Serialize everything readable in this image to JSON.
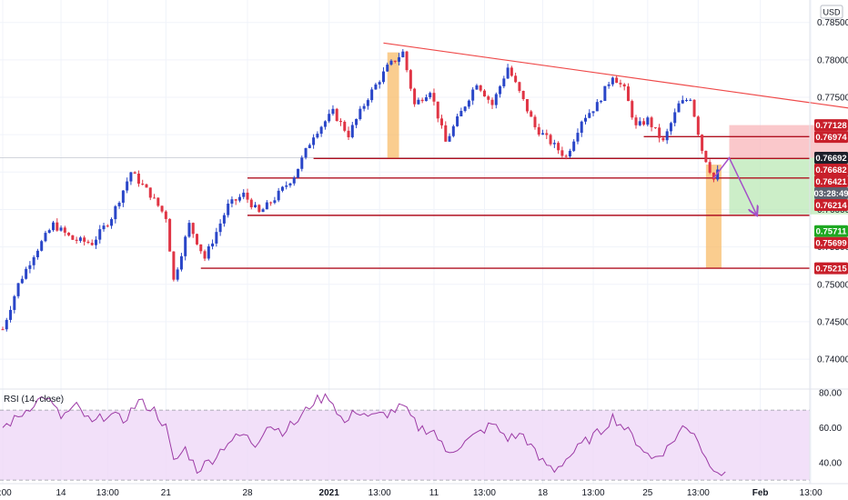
{
  "currency": "USD",
  "colors": {
    "up": "#2a46c8",
    "down": "#e03545",
    "level": "#b01020",
    "trendline": "#ef4a4a",
    "highlight": "#f7b253",
    "target_zone": "#b7e7b1",
    "stop_zone": "#f8b6b9",
    "arrow": "#a44fc9",
    "rsi_line": "#9c3aa5",
    "rsi_band": "#efd8f7",
    "tag_green": "#1ea822",
    "tag_red": "#c81f2a",
    "tag_dark": "#1b1e29",
    "tag_grey": "#5d6270"
  },
  "chart_data": {
    "type": "candlestick",
    "symbol_price_axis": {
      "ticks": [
        0.74,
        0.745,
        0.75,
        0.755,
        0.76,
        0.765,
        0.77,
        0.775,
        0.78,
        0.785
      ],
      "tick_labels": [
        "0.74000",
        "0.74500",
        "0.75000",
        "0.75500",
        "0.76000",
        "0.76500",
        "0.77000",
        "0.77500",
        "0.78000",
        "0.78500"
      ],
      "range": [
        0.736,
        0.788
      ]
    },
    "time_axis": {
      "labels": [
        "0:00",
        "14",
        "13:00",
        "21",
        "28",
        "2021",
        "13:00",
        "11",
        "13:00",
        "18",
        "13:00",
        "25",
        "13:00",
        "Feb",
        "13:00"
      ],
      "label_index": [
        0,
        15,
        27,
        42,
        63,
        84,
        97,
        111,
        124,
        139,
        152,
        166,
        179,
        195,
        208
      ]
    },
    "price_tags": [
      {
        "label": "0.77128",
        "value": 0.77128,
        "style": "red"
      },
      {
        "label": "0.76974",
        "value": 0.76974,
        "style": "red"
      },
      {
        "label": "0.76692",
        "value": 0.76692,
        "style": "dark"
      },
      {
        "label": "0.76682",
        "value": 0.76682,
        "style": "red"
      },
      {
        "label": "0.76421",
        "value": 0.76421,
        "style": "red"
      },
      {
        "label": "03:28:49",
        "value": 0.7634,
        "style": "grey"
      },
      {
        "label": "0.76214",
        "value": 0.76214,
        "style": "red"
      },
      {
        "label": "0.75711",
        "value": 0.75711,
        "style": "green"
      },
      {
        "label": "0.75699",
        "value": 0.75699,
        "style": "red"
      },
      {
        "label": "0.75215",
        "value": 0.75215,
        "style": "red"
      }
    ],
    "horizontal_levels": [
      {
        "value": 0.76974,
        "from_index": 165
      },
      {
        "value": 0.76682,
        "from_index": 80
      },
      {
        "value": 0.76421,
        "from_index": 63
      },
      {
        "value": 0.75922,
        "from_index": 63
      },
      {
        "value": 0.75215,
        "from_index": 51
      }
    ],
    "trendline": {
      "from": {
        "index": 98,
        "price": 0.78225
      },
      "to": {
        "index": 220,
        "price": 0.7734
      }
    },
    "highlight_columns": [
      {
        "from_index": 99,
        "to_index": 102,
        "top": 0.781,
        "bottom": 0.7669
      },
      {
        "from_index": 181,
        "to_index": 185,
        "top": 0.766,
        "bottom": 0.75215
      }
    ],
    "position": {
      "from_index": 187,
      "to_index": 218,
      "stop": 0.77128,
      "entry": 0.76692,
      "target": 0.75935
    },
    "projection": [
      {
        "index": 183,
        "price": 0.7642
      },
      {
        "index": 187,
        "price": 0.7669
      },
      {
        "index": 194,
        "price": 0.75935
      }
    ],
    "series_anchors": [
      [
        0,
        0.744
      ],
      [
        4,
        0.75
      ],
      [
        8,
        0.754
      ],
      [
        13,
        0.758
      ],
      [
        18,
        0.756
      ],
      [
        23,
        0.7555
      ],
      [
        28,
        0.759
      ],
      [
        33,
        0.765
      ],
      [
        38,
        0.762
      ],
      [
        42,
        0.759
      ],
      [
        44,
        0.7505
      ],
      [
        48,
        0.758
      ],
      [
        52,
        0.7535
      ],
      [
        58,
        0.7605
      ],
      [
        62,
        0.762
      ],
      [
        66,
        0.7595
      ],
      [
        70,
        0.7615
      ],
      [
        75,
        0.7645
      ],
      [
        80,
        0.77
      ],
      [
        85,
        0.773
      ],
      [
        89,
        0.77
      ],
      [
        94,
        0.775
      ],
      [
        99,
        0.779
      ],
      [
        103,
        0.781
      ],
      [
        106,
        0.774
      ],
      [
        110,
        0.776
      ],
      [
        114,
        0.769
      ],
      [
        118,
        0.773
      ],
      [
        122,
        0.777
      ],
      [
        126,
        0.774
      ],
      [
        130,
        0.779
      ],
      [
        134,
        0.7745
      ],
      [
        137,
        0.771
      ],
      [
        141,
        0.769
      ],
      [
        145,
        0.767
      ],
      [
        149,
        0.772
      ],
      [
        153,
        0.774
      ],
      [
        157,
        0.778
      ],
      [
        160,
        0.776
      ],
      [
        163,
        0.771
      ],
      [
        166,
        0.772
      ],
      [
        170,
        0.769
      ],
      [
        174,
        0.774
      ],
      [
        177,
        0.775
      ],
      [
        180,
        0.768
      ],
      [
        183,
        0.764
      ],
      [
        184,
        0.765
      ]
    ],
    "rsi": {
      "title": "RSI (14, close)",
      "ticks": [
        40,
        60,
        80
      ],
      "tick_labels": [
        "40.00",
        "60.00",
        "80.00"
      ],
      "band": [
        30,
        70
      ],
      "range": [
        28,
        82
      ],
      "anchors": [
        [
          0,
          60
        ],
        [
          4,
          66
        ],
        [
          8,
          74
        ],
        [
          11,
          78
        ],
        [
          15,
          66
        ],
        [
          19,
          72
        ],
        [
          23,
          62
        ],
        [
          27,
          68
        ],
        [
          31,
          64
        ],
        [
          35,
          75
        ],
        [
          39,
          70
        ],
        [
          42,
          60
        ],
        [
          44,
          40
        ],
        [
          47,
          48
        ],
        [
          50,
          36
        ],
        [
          54,
          42
        ],
        [
          58,
          52
        ],
        [
          62,
          56
        ],
        [
          65,
          50
        ],
        [
          68,
          62
        ],
        [
          72,
          58
        ],
        [
          76,
          64
        ],
        [
          80,
          75
        ],
        [
          84,
          78
        ],
        [
          88,
          62
        ],
        [
          91,
          70
        ],
        [
          95,
          66
        ],
        [
          99,
          68
        ],
        [
          103,
          72
        ],
        [
          107,
          60
        ],
        [
          111,
          58
        ],
        [
          114,
          46
        ],
        [
          118,
          50
        ],
        [
          122,
          56
        ],
        [
          126,
          62
        ],
        [
          130,
          54
        ],
        [
          134,
          56
        ],
        [
          138,
          42
        ],
        [
          142,
          36
        ],
        [
          146,
          44
        ],
        [
          150,
          52
        ],
        [
          154,
          58
        ],
        [
          157,
          66
        ],
        [
          160,
          60
        ],
        [
          164,
          50
        ],
        [
          167,
          42
        ],
        [
          171,
          48
        ],
        [
          175,
          60
        ],
        [
          178,
          58
        ],
        [
          181,
          42
        ],
        [
          184,
          36
        ],
        [
          186,
          32
        ]
      ]
    }
  }
}
